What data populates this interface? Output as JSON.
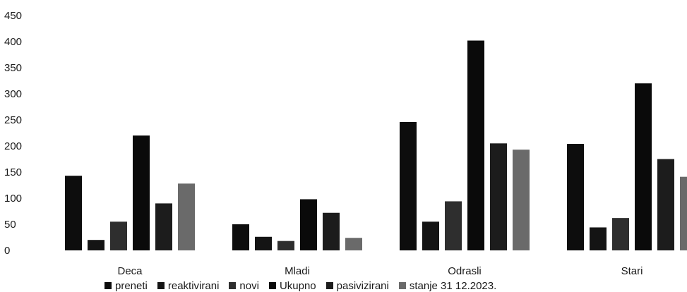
{
  "chart_data": {
    "type": "bar",
    "title": "",
    "xlabel": "",
    "ylabel": "",
    "ylim": [
      0,
      450
    ],
    "yticks": [
      "0",
      "50",
      "100",
      "150",
      "200",
      "250",
      "300",
      "350",
      "400",
      "450"
    ],
    "grid": false,
    "legend_position": "bottom",
    "categories": [
      "Deca",
      "Mladi",
      "Odrasli",
      "Stari"
    ],
    "series": [
      {
        "name": "preneti",
        "color": "#0d0d0d",
        "values": [
          143,
          50,
          246,
          204
        ]
      },
      {
        "name": "reaktivirani",
        "color": "#141414",
        "values": [
          20,
          26,
          55,
          44
        ]
      },
      {
        "name": "novi",
        "color": "#2e2e2e",
        "values": [
          55,
          18,
          94,
          62
        ]
      },
      {
        "name": "Ukupno",
        "color": "#0a0a0a",
        "values": [
          220,
          98,
          402,
          320
        ]
      },
      {
        "name": "pasivizirani",
        "color": "#1c1c1c",
        "values": [
          90,
          72,
          205,
          175
        ]
      },
      {
        "name": "stanje 31 12.2023.",
        "color": "#6a6a6a",
        "values": [
          128,
          24,
          193,
          141
        ]
      }
    ]
  }
}
